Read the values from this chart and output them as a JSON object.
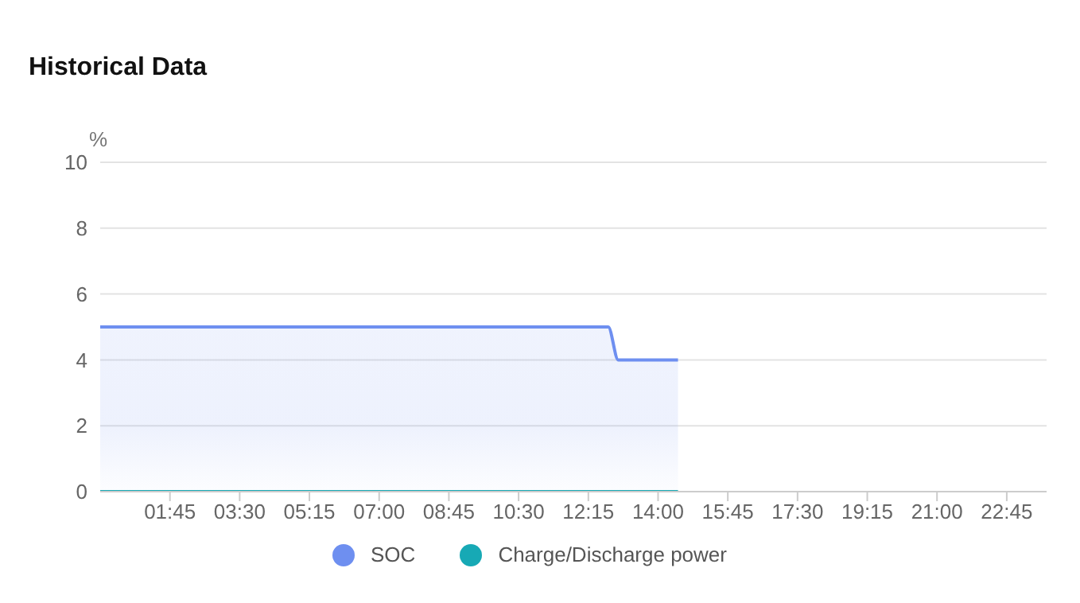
{
  "chart_data": {
    "type": "area",
    "title": "Historical Data",
    "ylabel": "%",
    "series": [
      {
        "name": "SOC",
        "color": "#6e8ff0",
        "x": [
          0,
          12.75,
          13,
          14.5
        ],
        "values": [
          5,
          5,
          4,
          4
        ]
      },
      {
        "name": "Charge/Discharge power",
        "color": "#17a9b5",
        "type": "line",
        "x": [
          0,
          14.5
        ],
        "values": [
          0,
          0
        ]
      }
    ],
    "xlim": [
      0,
      23.75
    ],
    "xticks": [
      {
        "value": 1.75,
        "label": "01:45"
      },
      {
        "value": 3.5,
        "label": "03:30"
      },
      {
        "value": 5.25,
        "label": "05:15"
      },
      {
        "value": 7,
        "label": "07:00"
      },
      {
        "value": 8.75,
        "label": "08:45"
      },
      {
        "value": 10.5,
        "label": "10:30"
      },
      {
        "value": 12.25,
        "label": "12:15"
      },
      {
        "value": 14,
        "label": "14:00"
      },
      {
        "value": 15.75,
        "label": "15:45"
      },
      {
        "value": 17.5,
        "label": "17:30"
      },
      {
        "value": 19.25,
        "label": "19:15"
      },
      {
        "value": 21,
        "label": "21:00"
      },
      {
        "value": 22.75,
        "label": "22:45"
      }
    ],
    "ylim": [
      0,
      10
    ],
    "yticks": [
      0,
      2,
      4,
      6,
      8,
      10
    ],
    "grid": "y",
    "legend": "bottom",
    "marker": "none",
    "line_style": "solid"
  }
}
